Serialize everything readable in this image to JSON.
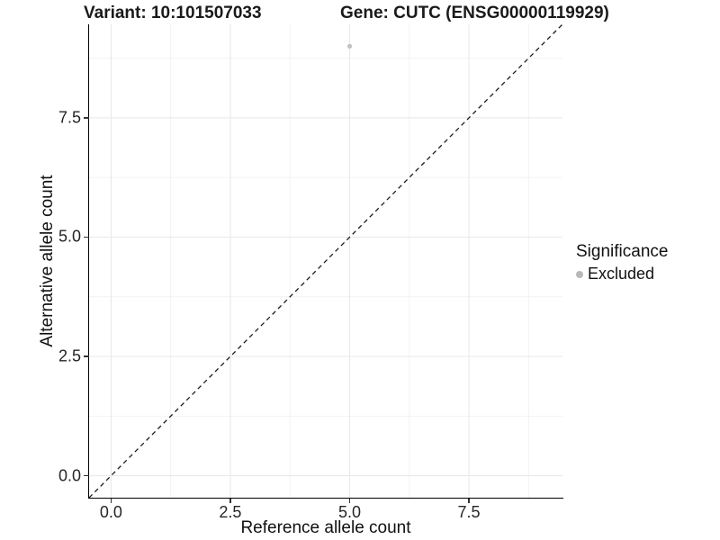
{
  "title": {
    "variant": "Variant: 10:101507033",
    "gene": "Gene: CUTC (ENSG00000119929)"
  },
  "chart_data": {
    "type": "scatter",
    "title": "Variant: 10:101507033   Gene: CUTC (ENSG00000119929)",
    "xlabel": "Reference allele count",
    "ylabel": "Alternative allele count",
    "xlim": [
      -0.46,
      9.46
    ],
    "ylim": [
      -0.46,
      9.46
    ],
    "x_ticks": [
      0,
      2.5,
      5,
      7.5
    ],
    "y_ticks": [
      0,
      2.5,
      5,
      7.5
    ],
    "x_tick_labels": [
      "0.0",
      "2.5",
      "5.0",
      "7.5"
    ],
    "y_tick_labels": [
      "0.0",
      "2.5",
      "5.0",
      "7.5"
    ],
    "minor_ticks": [
      1.25,
      3.75,
      6.25,
      8.75
    ],
    "grid": true,
    "series": [
      {
        "name": "Excluded",
        "points": [
          {
            "x": 5,
            "y": 9
          }
        ],
        "color": "#c2c2c2",
        "point_radius": 2.6
      }
    ],
    "reference_line": {
      "style": "dashed",
      "from": [
        -0.46,
        -0.46
      ],
      "to": [
        9.46,
        9.46
      ],
      "color": "#1a1a1a"
    },
    "legend": {
      "title": "Significance",
      "position": "right",
      "entries": [
        {
          "label": "Excluded",
          "marker": "circle-icon",
          "color": "#b9b9b9"
        }
      ]
    },
    "colors": {
      "background": "#ffffff",
      "grid_major": "#e8e8e8",
      "grid_minor": "#f2f2f2",
      "axis_line": "#000000",
      "tick_mark": "#333333",
      "tick_label": "#262626"
    }
  }
}
